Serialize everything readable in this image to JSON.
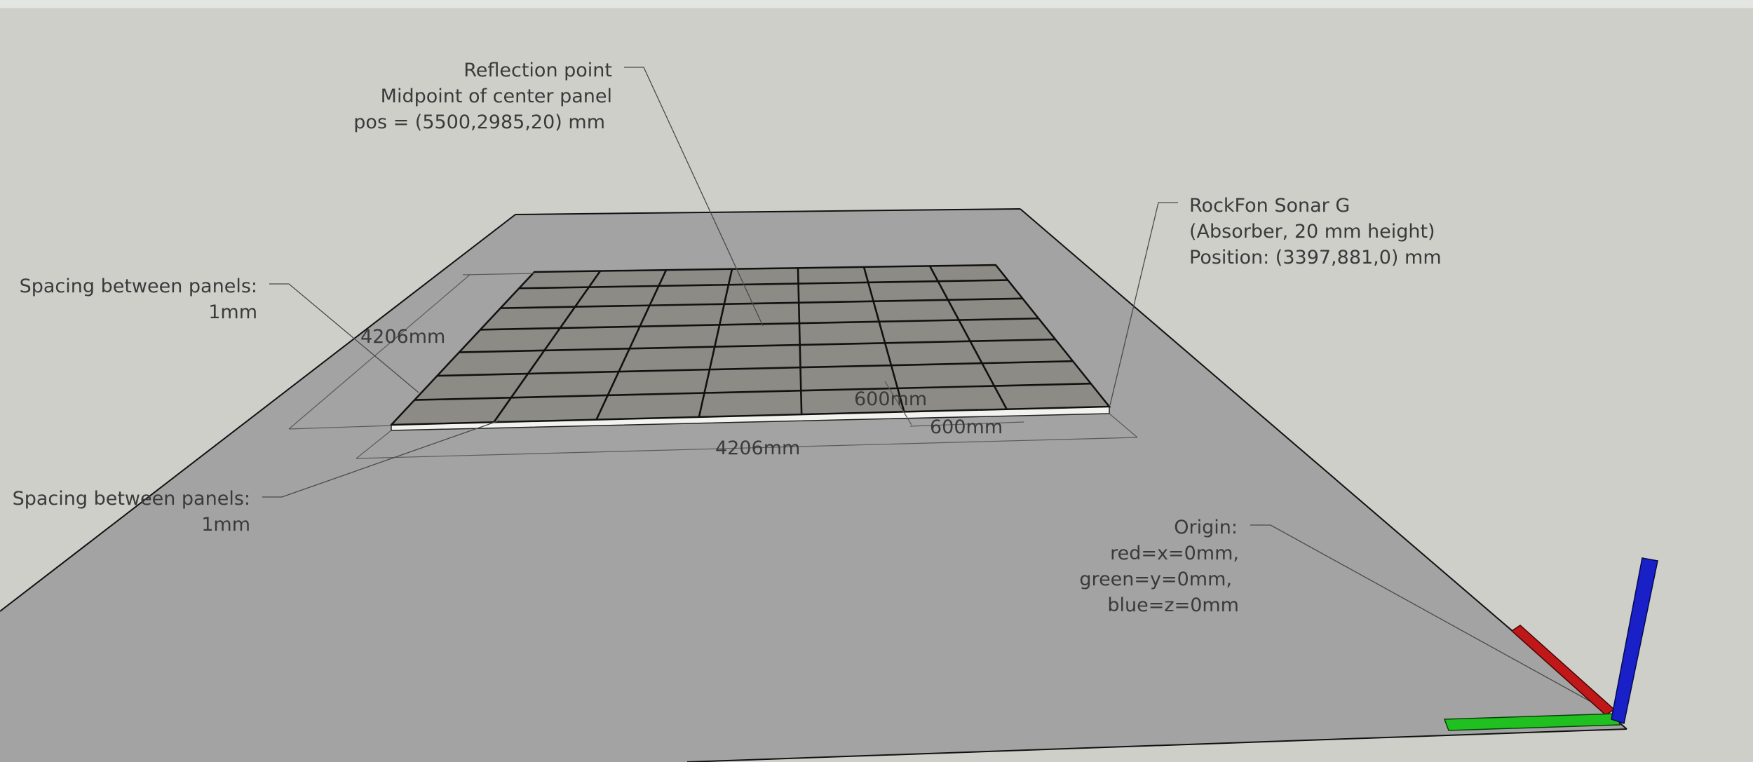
{
  "annotations": {
    "reflection": {
      "line1": "Reflection point",
      "line2": "Midpoint of center panel",
      "line3": "pos = (5500,2985,20) mm"
    },
    "rockfon": {
      "line1": "RockFon Sonar G",
      "line2": "(Absorber, 20 mm height)",
      "line3": "Position: (3397,881,0) mm"
    },
    "spacing_top": {
      "line1": "Spacing between panels:",
      "line2": "1mm"
    },
    "spacing_bottom": {
      "line1": "Spacing between panels:",
      "line2": "1mm"
    },
    "origin": {
      "line1": "Origin:",
      "line2": "red=x=0mm,",
      "line3": "green=y=0mm,",
      "line4": "blue=z=0mm"
    }
  },
  "dimensions": {
    "depth": "4206mm",
    "width": "4206mm",
    "panel_depth": "600mm",
    "panel_width": "600mm"
  },
  "panel_grid": {
    "columns": 7,
    "rows": 7
  },
  "colors": {
    "background": "#cfcfca",
    "floor": "#a3a3a3",
    "panels": "#8c8b85",
    "axis_x": "#c01818",
    "axis_y": "#20c020",
    "axis_z": "#1a20c8"
  }
}
